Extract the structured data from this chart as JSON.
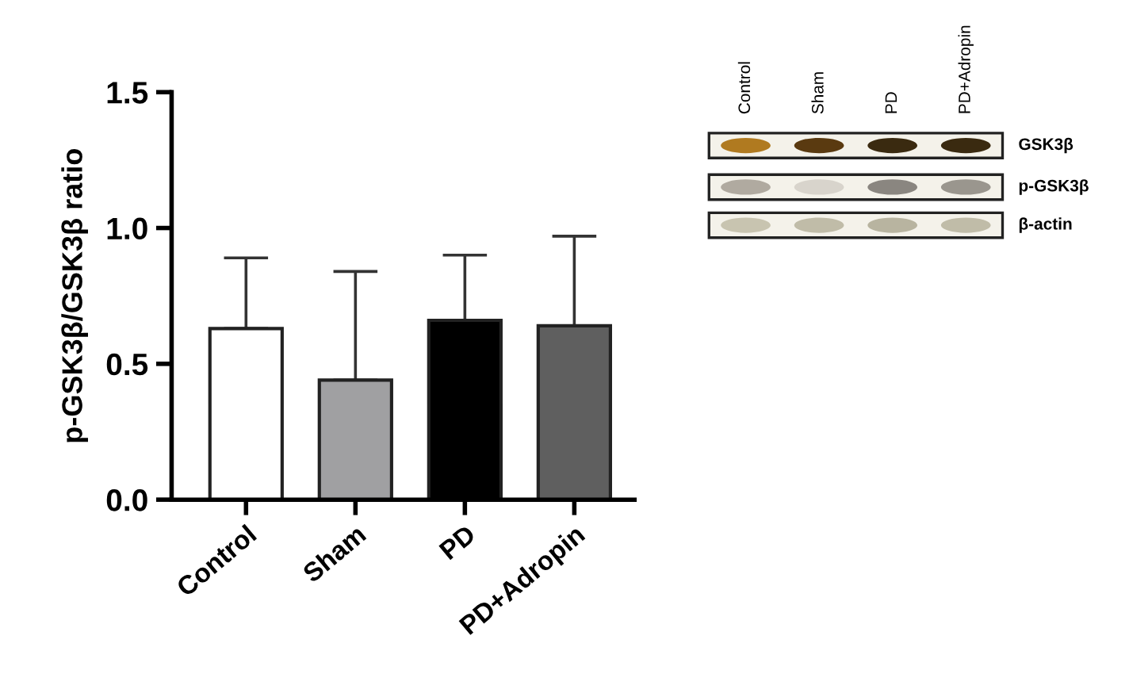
{
  "chart_data": {
    "type": "bar",
    "ylabel": "p-GSK3β/GSK3β ratio",
    "categories": [
      "Control",
      "Sham",
      "PD",
      "PD+Adropin"
    ],
    "values": [
      0.63,
      0.44,
      0.66,
      0.64
    ],
    "errors": [
      [
        0.63,
        0.89
      ],
      [
        0.44,
        0.84
      ],
      [
        0.66,
        0.9
      ],
      [
        0.64,
        0.97
      ]
    ],
    "colors": [
      "#ffffff",
      "#a0a0a2",
      "#000000",
      "#5f5f5f"
    ],
    "ylim": [
      0,
      1.5
    ],
    "yticks": [
      {
        "value": 0,
        "label": "0.0"
      },
      0.5,
      {
        "value": 1,
        "label": "1.0"
      },
      1.5
    ],
    "grid": false,
    "legend": false,
    "annotations": [
      "Control",
      "Sham",
      "PD",
      "PD+Adropin",
      "GSK3β",
      "p-GSK3β",
      "β-actin"
    ]
  }
}
